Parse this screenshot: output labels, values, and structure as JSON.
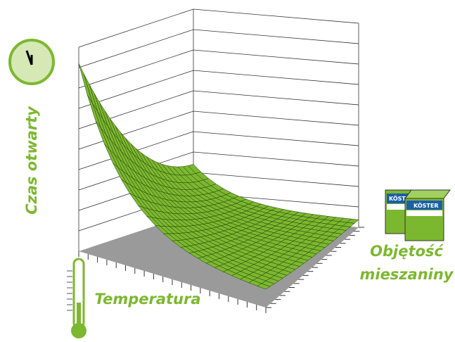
{
  "labels": {
    "vertical_axis": "Czas otwarty",
    "front_axis": "Temperatura",
    "side_axis": {
      "line1": "Objętość",
      "line2": "mieszaniny"
    }
  },
  "boxes": [
    {
      "brand": "KÖSTER"
    },
    {
      "brand": "KÖSTER"
    }
  ]
}
